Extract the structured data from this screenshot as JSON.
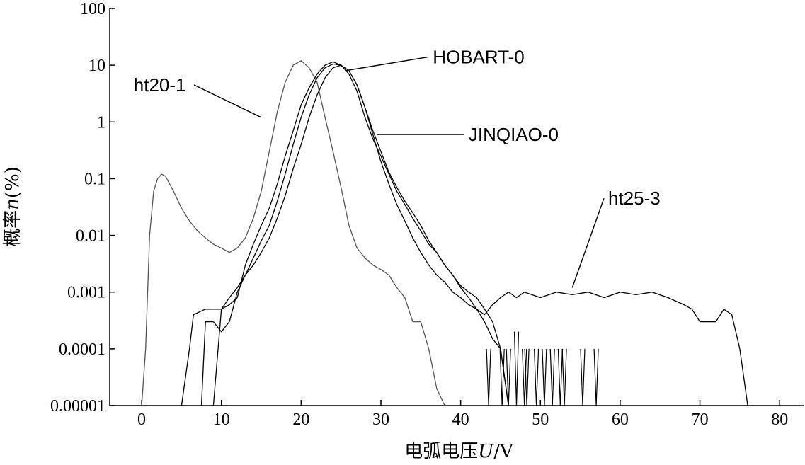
{
  "chart_data": {
    "type": "line",
    "title": "",
    "xlabel": "电弧电压U/V",
    "xlabel_parts": {
      "prefix": "电弧电压",
      "var": "U",
      "suffix": "/V"
    },
    "ylabel": "概率n(%)",
    "ylabel_parts": {
      "prefix": "概率",
      "var": "n",
      "suffix": "(%)"
    },
    "xlim": [
      -4,
      83
    ],
    "ylim": [
      1e-05,
      100
    ],
    "yscale": "log",
    "grid": false,
    "xticks": [
      0,
      10,
      20,
      30,
      40,
      50,
      60,
      70,
      80
    ],
    "xtick_labels": [
      "0",
      "10",
      "20",
      "30",
      "40",
      "50",
      "60",
      "70",
      "80"
    ],
    "yticks": [
      1e-05,
      0.0001,
      0.001,
      0.01,
      0.1,
      1,
      10,
      100
    ],
    "ytick_labels": [
      "0.00001",
      "0.0001",
      "0.001",
      "0.01",
      "0.1",
      "1",
      "10",
      "100"
    ],
    "series": [
      {
        "name": "ht20-1",
        "color": "#555555",
        "points": [
          [
            0,
            1e-05
          ],
          [
            0.5,
            0.0001
          ],
          [
            1,
            0.01
          ],
          [
            1.5,
            0.06
          ],
          [
            2,
            0.1
          ],
          [
            2.5,
            0.12
          ],
          [
            3,
            0.11
          ],
          [
            4,
            0.06
          ],
          [
            5,
            0.03
          ],
          [
            6,
            0.018
          ],
          [
            7,
            0.012
          ],
          [
            8,
            0.009
          ],
          [
            9,
            0.007
          ],
          [
            10,
            0.006
          ],
          [
            11,
            0.005
          ],
          [
            12,
            0.006
          ],
          [
            13,
            0.009
          ],
          [
            14,
            0.02
          ],
          [
            15,
            0.06
          ],
          [
            16,
            0.3
          ],
          [
            17,
            1.5
          ],
          [
            18,
            5
          ],
          [
            19,
            10
          ],
          [
            20,
            12
          ],
          [
            21,
            9
          ],
          [
            22,
            5
          ],
          [
            23,
            1.2
          ],
          [
            24,
            0.3
          ],
          [
            25,
            0.07
          ],
          [
            26,
            0.015
          ],
          [
            27,
            0.006
          ],
          [
            28,
            0.004
          ],
          [
            29,
            0.003
          ],
          [
            30,
            0.0025
          ],
          [
            31,
            0.002
          ],
          [
            32,
            0.0012
          ],
          [
            33,
            0.0008
          ],
          [
            34,
            0.0003
          ],
          [
            35,
            0.0003
          ],
          [
            36,
            0.0001
          ],
          [
            37,
            2e-05
          ],
          [
            38,
            1e-05
          ]
        ]
      },
      {
        "name": "HOBART-0",
        "color": "#000000",
        "points": [
          [
            5,
            1e-05
          ],
          [
            6,
            0.0001
          ],
          [
            6.5,
            0.0004
          ],
          [
            8,
            0.0005
          ],
          [
            9,
            0.0005
          ],
          [
            10,
            0.0005
          ],
          [
            11,
            0.0006
          ],
          [
            12,
            0.0008
          ],
          [
            13,
            0.003
          ],
          [
            14,
            0.007
          ],
          [
            15,
            0.015
          ],
          [
            16,
            0.03
          ],
          [
            17,
            0.08
          ],
          [
            18,
            0.25
          ],
          [
            19,
            0.7
          ],
          [
            20,
            2
          ],
          [
            21,
            4
          ],
          [
            22,
            7
          ],
          [
            23,
            10
          ],
          [
            24,
            11.5
          ],
          [
            25,
            10
          ],
          [
            26,
            7
          ],
          [
            27,
            3.5
          ],
          [
            28,
            1.2
          ],
          [
            29,
            0.5
          ],
          [
            30,
            0.25
          ],
          [
            31,
            0.12
          ],
          [
            32,
            0.06
          ],
          [
            33,
            0.035
          ],
          [
            34,
            0.02
          ],
          [
            35,
            0.012
          ],
          [
            36,
            0.007
          ],
          [
            37,
            0.005
          ],
          [
            38,
            0.003
          ],
          [
            39,
            0.002
          ],
          [
            40,
            0.0013
          ],
          [
            41,
            0.001
          ],
          [
            42,
            0.0008
          ],
          [
            43,
            0.0005
          ],
          [
            44,
            0.0003
          ],
          [
            45,
            0.0001
          ],
          [
            46,
            1e-05
          ]
        ]
      },
      {
        "name": "JINQIAO-0",
        "color": "#000000",
        "points": [
          [
            7.5,
            1e-05
          ],
          [
            8,
            0.0003
          ],
          [
            9,
            0.0003
          ],
          [
            10,
            0.0002
          ],
          [
            11,
            0.0003
          ],
          [
            12,
            0.001
          ],
          [
            13,
            0.002
          ],
          [
            14,
            0.004
          ],
          [
            15,
            0.008
          ],
          [
            16,
            0.015
          ],
          [
            17,
            0.04
          ],
          [
            18,
            0.12
          ],
          [
            19,
            0.4
          ],
          [
            20,
            1.2
          ],
          [
            21,
            3
          ],
          [
            22,
            6
          ],
          [
            23,
            9
          ],
          [
            24,
            10.5
          ],
          [
            25,
            10
          ],
          [
            26,
            8
          ],
          [
            27,
            4.5
          ],
          [
            28,
            1.8
          ],
          [
            29,
            0.7
          ],
          [
            30,
            0.3
          ],
          [
            31,
            0.13
          ],
          [
            32,
            0.07
          ],
          [
            33,
            0.04
          ],
          [
            34,
            0.025
          ],
          [
            35,
            0.015
          ],
          [
            36,
            0.008
          ],
          [
            37,
            0.005
          ],
          [
            38,
            0.003
          ],
          [
            39,
            0.002
          ],
          [
            40,
            0.0012
          ],
          [
            41,
            0.0008
          ],
          [
            42,
            0.0005
          ],
          [
            43,
            0.0003
          ],
          [
            44,
            0.00015
          ],
          [
            45,
            0.0001
          ],
          [
            46,
            1e-05
          ]
        ]
      },
      {
        "name": "ht25-3",
        "color": "#000000",
        "points": [
          [
            9,
            1e-05
          ],
          [
            10,
            0.0005
          ],
          [
            11,
            0.0008
          ],
          [
            12,
            0.0012
          ],
          [
            13,
            0.002
          ],
          [
            14,
            0.003
          ],
          [
            15,
            0.005
          ],
          [
            16,
            0.009
          ],
          [
            17,
            0.02
          ],
          [
            18,
            0.05
          ],
          [
            19,
            0.15
          ],
          [
            20,
            0.4
          ],
          [
            21,
            1.2
          ],
          [
            22,
            3
          ],
          [
            23,
            6
          ],
          [
            24,
            9
          ],
          [
            25,
            10
          ],
          [
            26,
            8
          ],
          [
            27,
            4.5
          ],
          [
            28,
            1.8
          ],
          [
            29,
            0.6
          ],
          [
            30,
            0.2
          ],
          [
            31,
            0.08
          ],
          [
            32,
            0.035
          ],
          [
            33,
            0.018
          ],
          [
            34,
            0.009
          ],
          [
            35,
            0.005
          ],
          [
            36,
            0.003
          ],
          [
            37,
            0.002
          ],
          [
            38,
            0.0015
          ],
          [
            39,
            0.001
          ],
          [
            40,
            0.0008
          ],
          [
            41,
            0.0006
          ],
          [
            42,
            0.0005
          ],
          [
            43,
            0.0004
          ],
          [
            44,
            0.0006
          ],
          [
            45,
            0.0008
          ],
          [
            46,
            0.001
          ],
          [
            47,
            0.0008
          ],
          [
            48,
            0.001
          ],
          [
            50,
            0.0008
          ],
          [
            52,
            0.001
          ],
          [
            54,
            0.0009
          ],
          [
            56,
            0.001
          ],
          [
            58,
            0.0008
          ],
          [
            60,
            0.001
          ],
          [
            62,
            0.0009
          ],
          [
            64,
            0.001
          ],
          [
            66,
            0.0008
          ],
          [
            68,
            0.0006
          ],
          [
            69,
            0.0005
          ],
          [
            70,
            0.0003
          ],
          [
            72,
            0.0003
          ],
          [
            73,
            0.0005
          ],
          [
            74,
            0.0004
          ],
          [
            75,
            0.0001
          ],
          [
            76,
            1e-05
          ]
        ]
      }
    ],
    "spikes": [
      {
        "series": "ht25-3",
        "x": 43.5,
        "y": 0.0001
      },
      {
        "series": "ht25-3",
        "x": 45.2,
        "y": 0.0001
      },
      {
        "series": "ht25-3",
        "x": 47.0,
        "y": 0.0002
      },
      {
        "series": "ht25-3",
        "x": 48.3,
        "y": 0.0001
      },
      {
        "series": "ht25-3",
        "x": 49.5,
        "y": 0.0001
      },
      {
        "series": "ht25-3",
        "x": 51.5,
        "y": 0.0001
      },
      {
        "series": "ht25-3",
        "x": 53.0,
        "y": 0.0001
      },
      {
        "series": "ht25-3",
        "x": 55.3,
        "y": 0.0001
      },
      {
        "series": "ht25-3",
        "x": 57.0,
        "y": 0.0001
      },
      {
        "series": "HOBART-0",
        "x": 46.0,
        "y": 0.0001
      },
      {
        "series": "HOBART-0",
        "x": 50.5,
        "y": 0.0001
      },
      {
        "series": "JINQIAO-0",
        "x": 48.0,
        "y": 0.0001
      },
      {
        "series": "JINQIAO-0",
        "x": 52.5,
        "y": 0.0001
      }
    ],
    "annotations": [
      {
        "label": "HOBART-0",
        "text_x": 36.5,
        "text_y": 14,
        "point_x": 25.5,
        "point_y": 8
      },
      {
        "label": "ht20-1",
        "text_x": -1,
        "text_y": 4.5,
        "point_x": 15,
        "point_y": 1.2
      },
      {
        "label": "JINQIAO-0",
        "text_x": 41,
        "text_y": 0.6,
        "point_x": 29.5,
        "point_y": 0.6
      },
      {
        "label": "ht25-3",
        "text_x": 58.5,
        "text_y": 0.045,
        "point_x": 54,
        "point_y": 0.0012
      }
    ]
  }
}
